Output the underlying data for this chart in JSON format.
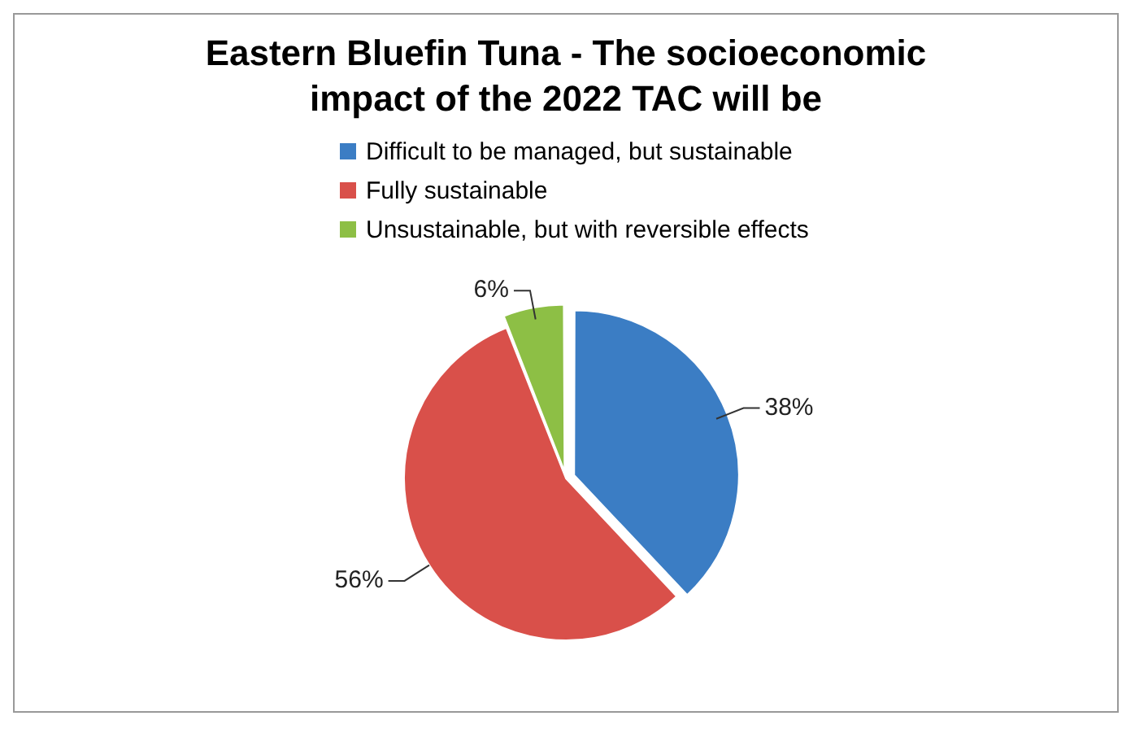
{
  "chart_data": {
    "type": "pie",
    "title": "Eastern Bluefin Tuna - The socioeconomic impact of the 2022 TAC will be",
    "categories": [
      "Difficult to be managed, but sustainable",
      "Fully sustainable",
      "Unsustainable, but with reversible effects"
    ],
    "values": [
      38,
      56,
      6
    ],
    "colors": [
      "#3b7dc4",
      "#d9504a",
      "#8dbf45"
    ],
    "value_labels": [
      "38%",
      "56%",
      "6%"
    ],
    "legend": "top"
  }
}
